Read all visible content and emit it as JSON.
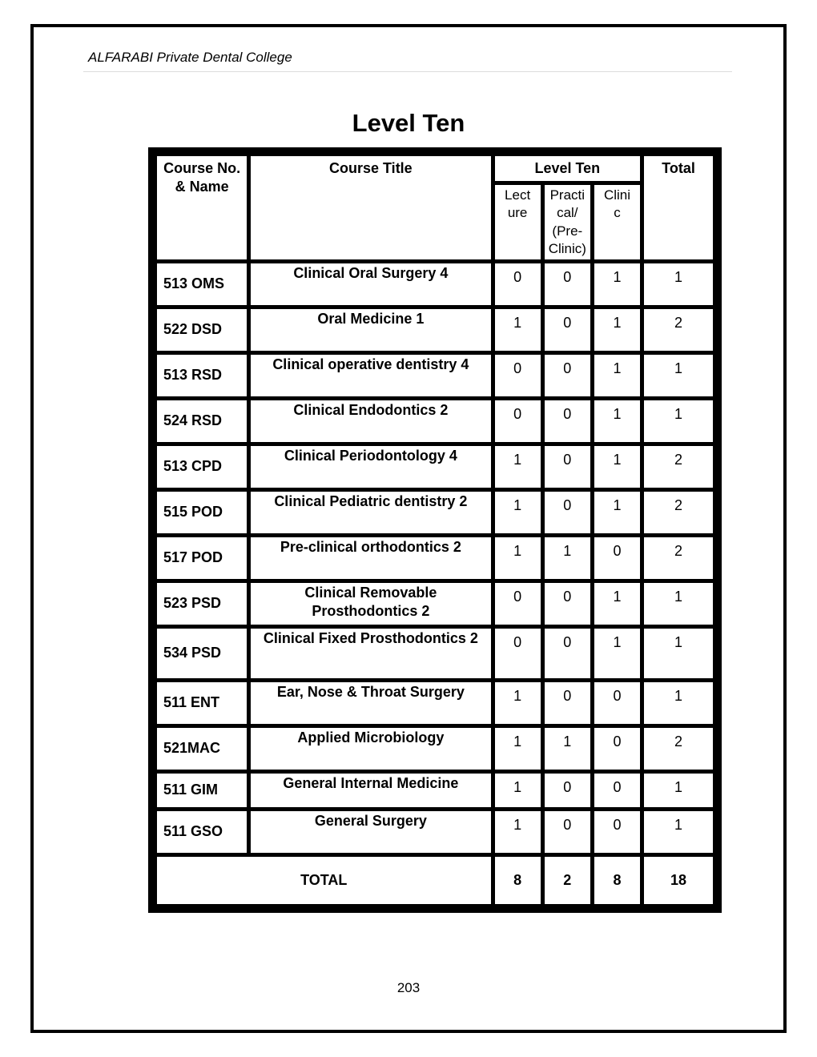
{
  "header": "ALFARABI Private Dental College",
  "title": "Level Ten",
  "pageNumber": "203",
  "table": {
    "colHeaders": {
      "course": "Course No. & Name",
      "title": "Course Title",
      "levelGroup": "Level Ten",
      "lecture": "Lect\nure",
      "practical": "Practi\ncal/\n(Pre-\nClinic)",
      "clinic": "Clini\nc",
      "total": "Total"
    },
    "rows": [
      {
        "code": "513 OMS",
        "title": "Clinical Oral Surgery 4",
        "lecture": "0",
        "practical": "0",
        "clinic": "1",
        "total": "1",
        "size": "md"
      },
      {
        "code": "522 DSD",
        "title": "Oral Medicine 1",
        "lecture": "1",
        "practical": "0",
        "clinic": "1",
        "total": "2",
        "size": "md"
      },
      {
        "code": "513 RSD",
        "title": "Clinical operative dentistry 4",
        "lecture": "0",
        "practical": "0",
        "clinic": "1",
        "total": "1",
        "size": "md"
      },
      {
        "code": "524 RSD",
        "title": "Clinical Endodontics 2",
        "lecture": "0",
        "practical": "0",
        "clinic": "1",
        "total": "1",
        "size": "md"
      },
      {
        "code": "513 CPD",
        "title": "Clinical Periodontology 4",
        "lecture": "1",
        "practical": "0",
        "clinic": "1",
        "total": "2",
        "size": "md"
      },
      {
        "code": "515 POD",
        "title": "Clinical Pediatric dentistry 2",
        "lecture": "1",
        "practical": "0",
        "clinic": "1",
        "total": "2",
        "size": "md"
      },
      {
        "code": "517 POD",
        "title": "Pre-clinical orthodontics 2",
        "lecture": "1",
        "practical": "1",
        "clinic": "0",
        "total": "2",
        "size": "md"
      },
      {
        "code": "523 PSD",
        "title": "Clinical Removable Prosthodontics 2",
        "lecture": "0",
        "practical": "0",
        "clinic": "1",
        "total": "1",
        "size": "sm"
      },
      {
        "code": "534 PSD",
        "title": "Clinical Fixed Prosthodontics 2",
        "lecture": "0",
        "practical": "0",
        "clinic": "1",
        "total": "1",
        "size": "lg"
      },
      {
        "code": "511 ENT",
        "title": "Ear, Nose &  Throat Surgery",
        "lecture": "1",
        "practical": "0",
        "clinic": "0",
        "total": "1",
        "size": "md"
      },
      {
        "code": "521MAC",
        "title": "Applied Microbiology",
        "lecture": "1",
        "practical": "1",
        "clinic": "0",
        "total": "2",
        "size": "md"
      },
      {
        "code": "511 GIM",
        "title": "General Internal Medicine",
        "lecture": "1",
        "practical": "0",
        "clinic": "0",
        "total": "1",
        "size": "sm"
      },
      {
        "code": "511 GSO",
        "title": "General Surgery",
        "lecture": "1",
        "practical": "0",
        "clinic": "0",
        "total": "1",
        "size": "md"
      }
    ],
    "totalRow": {
      "label": "TOTAL",
      "lecture": "8",
      "practical": "2",
      "clinic": "8",
      "total": "18"
    }
  }
}
